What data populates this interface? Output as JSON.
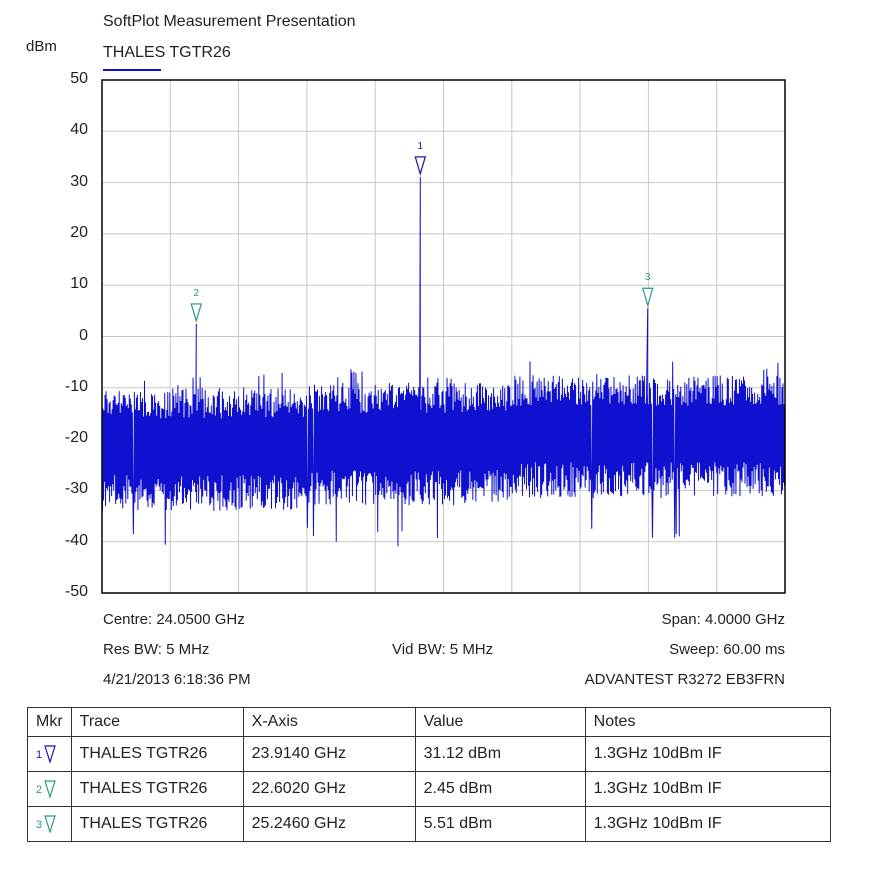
{
  "header": {
    "app_title": "SoftPlot Measurement Presentation",
    "trace_name": "THALES TGTR26",
    "y_unit": "dBm",
    "trace_color": "#1010d0"
  },
  "chart_data": {
    "type": "line",
    "title": "THALES TGTR26",
    "ylabel": "dBm",
    "ylim": [
      -50,
      50
    ],
    "y_ticks": [
      "50",
      "40",
      "30",
      "20",
      "10",
      "0",
      "-10",
      "-20",
      "-30",
      "-40",
      "-50"
    ],
    "xlim_ghz": [
      22.05,
      26.05
    ],
    "grid": true,
    "series": [
      {
        "name": "THALES TGTR26",
        "color": "#1010d0",
        "noise_floor_dbm": {
          "upper": -10,
          "lower": -30,
          "min": -41
        },
        "peaks": [
          {
            "x_ghz": 23.914,
            "y_dbm": 31.12
          },
          {
            "x_ghz": 22.602,
            "y_dbm": 2.45
          },
          {
            "x_ghz": 25.246,
            "y_dbm": 5.51
          }
        ]
      }
    ],
    "markers": [
      {
        "id": "1",
        "x_ghz": 23.914,
        "y_dbm": 31.12,
        "color": "#1818a0"
      },
      {
        "id": "2",
        "x_ghz": 22.602,
        "y_dbm": 2.45,
        "color": "#2a9a80"
      },
      {
        "id": "3",
        "x_ghz": 25.246,
        "y_dbm": 5.51,
        "color": "#2a9a80"
      }
    ]
  },
  "settings": {
    "centre": "Centre: 24.0500 GHz",
    "span": "Span: 4.0000 GHz",
    "res_bw": "Res BW: 5 MHz",
    "vid_bw": "Vid BW: 5 MHz",
    "sweep": "Sweep: 60.00 ms",
    "timestamp": "4/21/2013 6:18:36 PM",
    "instrument": "ADVANTEST R3272 EB3FRN"
  },
  "marker_table": {
    "headers": [
      "Mkr",
      "Trace",
      "X-Axis",
      "Value",
      "Notes"
    ],
    "rows": [
      {
        "mkr": "1",
        "color": "#1818a0",
        "trace": "THALES TGTR26",
        "x": "23.9140 GHz",
        "value": "31.12 dBm",
        "notes": "1.3GHz 10dBm IF"
      },
      {
        "mkr": "2",
        "color": "#2a9a80",
        "trace": "THALES TGTR26",
        "x": "22.6020 GHz",
        "value": "2.45 dBm",
        "notes": "1.3GHz 10dBm IF"
      },
      {
        "mkr": "3",
        "color": "#2a9a80",
        "trace": "THALES TGTR26",
        "x": "25.2460 GHz",
        "value": "5.51 dBm",
        "notes": "1.3GHz 10dBm IF"
      }
    ]
  }
}
